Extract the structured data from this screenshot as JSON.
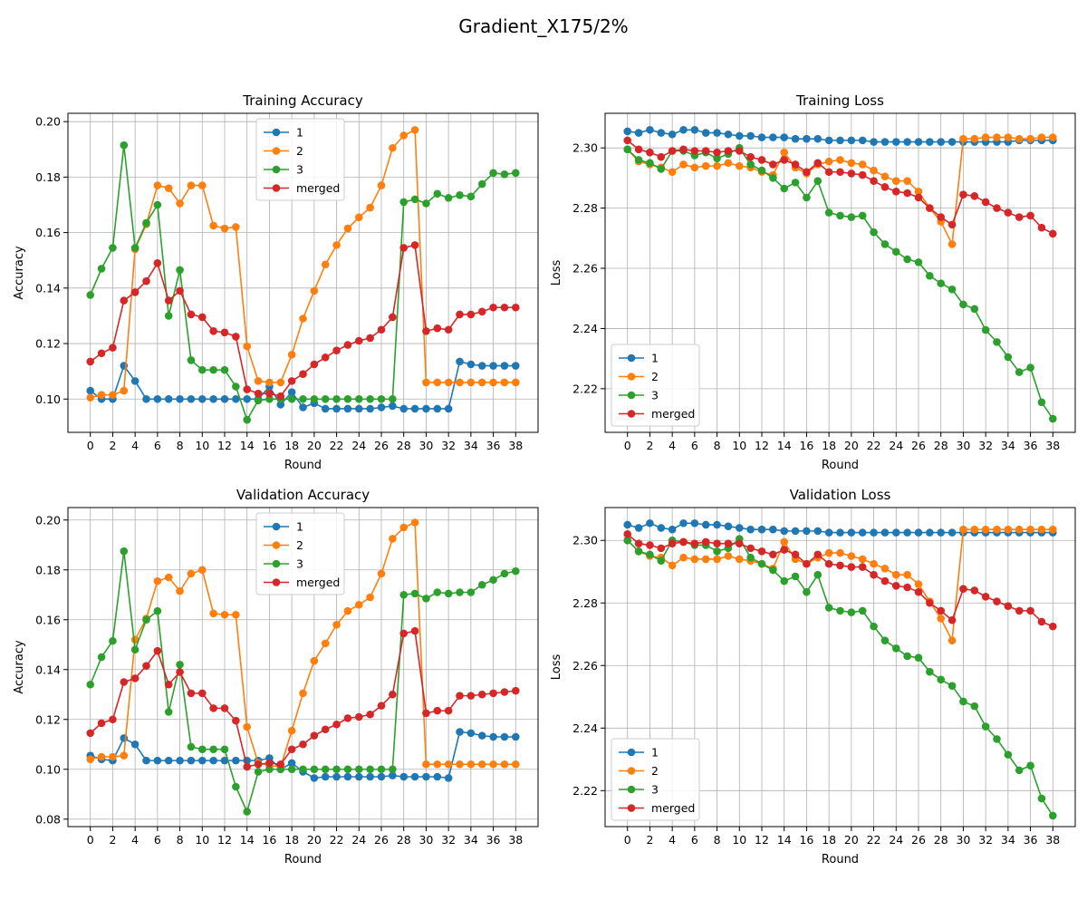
{
  "figure": {
    "title": "Gradient_X175/2%"
  },
  "colors": {
    "1": "#1f77b4",
    "2": "#ff7f0e",
    "3": "#2ca02c",
    "merged": "#d62728",
    "grid": "#b0b0b0",
    "axis": "#000000"
  },
  "chart_data": [
    {
      "type": "line",
      "title": "Training Accuracy",
      "xlabel": "Round",
      "ylabel": "Accuracy",
      "xlim": [
        -2,
        40
      ],
      "ylim": [
        0.088,
        0.203
      ],
      "x_ticks": [
        "0",
        "2",
        "4",
        "6",
        "8",
        "10",
        "12",
        "14",
        "16",
        "18",
        "20",
        "22",
        "24",
        "26",
        "28",
        "30",
        "32",
        "34",
        "36",
        "38"
      ],
      "y_ticks": [
        "0.10",
        "0.12",
        "0.14",
        "0.16",
        "0.18",
        "0.20"
      ],
      "grid": true,
      "legend_position": "top-center",
      "x": [
        0,
        1,
        2,
        3,
        4,
        5,
        6,
        7,
        8,
        9,
        10,
        11,
        12,
        13,
        14,
        15,
        16,
        17,
        18,
        19,
        20,
        21,
        22,
        23,
        24,
        25,
        26,
        27,
        28,
        29,
        30,
        31,
        32,
        33,
        34,
        35,
        36,
        37,
        38
      ],
      "series": [
        {
          "name": "1",
          "values": [
            0.103,
            0.1,
            0.1,
            0.112,
            0.1065,
            0.1,
            0.1,
            0.1,
            0.1,
            0.1,
            0.1,
            0.1,
            0.1,
            0.1,
            0.1,
            0.1,
            0.1045,
            0.098,
            0.1025,
            0.097,
            0.0985,
            0.0965,
            0.0965,
            0.0965,
            0.0965,
            0.0965,
            0.097,
            0.0975,
            0.0965,
            0.0965,
            0.0965,
            0.0965,
            0.0965,
            0.1135,
            0.1125,
            0.112,
            0.112,
            0.112,
            0.112
          ]
        },
        {
          "name": "2",
          "values": [
            0.1005,
            0.1015,
            0.1015,
            0.103,
            0.154,
            0.163,
            0.177,
            0.176,
            0.1705,
            0.177,
            0.177,
            0.1625,
            0.1615,
            0.162,
            0.119,
            0.1065,
            0.106,
            0.106,
            0.116,
            0.129,
            0.139,
            0.1485,
            0.1555,
            0.1615,
            0.1655,
            0.169,
            0.177,
            0.1905,
            0.195,
            0.197,
            0.106,
            0.106,
            0.106,
            0.106,
            0.106,
            0.106,
            0.106,
            0.106,
            0.106
          ]
        },
        {
          "name": "3",
          "values": [
            0.1375,
            0.147,
            0.1545,
            0.1915,
            0.1545,
            0.1635,
            0.17,
            0.13,
            0.1465,
            0.114,
            0.1105,
            0.1105,
            0.1105,
            0.1045,
            0.0925,
            0.0995,
            0.1,
            0.1,
            0.1,
            0.1,
            0.1,
            0.1,
            0.1,
            0.1,
            0.1,
            0.1,
            0.1,
            0.1,
            0.171,
            0.172,
            0.1705,
            0.174,
            0.1725,
            0.1735,
            0.173,
            0.1775,
            0.1815,
            0.181,
            0.1815
          ]
        },
        {
          "name": "merged",
          "values": [
            0.1135,
            0.1165,
            0.1185,
            0.1355,
            0.1385,
            0.1425,
            0.149,
            0.1355,
            0.139,
            0.1305,
            0.1295,
            0.1245,
            0.124,
            0.1225,
            0.1035,
            0.102,
            0.102,
            0.101,
            0.1065,
            0.109,
            0.1125,
            0.115,
            0.1175,
            0.1195,
            0.121,
            0.122,
            0.125,
            0.1295,
            0.1545,
            0.1555,
            0.1245,
            0.1255,
            0.125,
            0.1305,
            0.1305,
            0.1315,
            0.133,
            0.133,
            0.133
          ]
        }
      ]
    },
    {
      "type": "line",
      "title": "Training Loss",
      "xlabel": "Round",
      "ylabel": "Loss",
      "xlim": [
        -2,
        40
      ],
      "ylim": [
        2.2055,
        2.3115
      ],
      "x_ticks": [
        "0",
        "2",
        "4",
        "6",
        "8",
        "10",
        "12",
        "14",
        "16",
        "18",
        "20",
        "22",
        "24",
        "26",
        "28",
        "30",
        "32",
        "34",
        "36",
        "38"
      ],
      "y_ticks": [
        "2.22",
        "2.24",
        "2.26",
        "2.28",
        "2.30"
      ],
      "grid": true,
      "legend_position": "bottom-left",
      "x": [
        0,
        1,
        2,
        3,
        4,
        5,
        6,
        7,
        8,
        9,
        10,
        11,
        12,
        13,
        14,
        15,
        16,
        17,
        18,
        19,
        20,
        21,
        22,
        23,
        24,
        25,
        26,
        27,
        28,
        29,
        30,
        31,
        32,
        33,
        34,
        35,
        36,
        37,
        38
      ],
      "series": [
        {
          "name": "1",
          "values": [
            2.3055,
            2.305,
            2.306,
            2.305,
            2.3045,
            2.306,
            2.306,
            2.305,
            2.305,
            2.3045,
            2.304,
            2.304,
            2.3035,
            2.3035,
            2.3035,
            2.303,
            2.303,
            2.303,
            2.3025,
            2.3025,
            2.3025,
            2.3025,
            2.302,
            2.302,
            2.302,
            2.302,
            2.302,
            2.302,
            2.302,
            2.302,
            2.302,
            2.302,
            2.302,
            2.302,
            2.302,
            2.3025,
            2.3025,
            2.3025,
            2.3025
          ]
        },
        {
          "name": "2",
          "values": [
            2.2995,
            2.2955,
            2.2945,
            2.2935,
            2.292,
            2.2945,
            2.2935,
            2.294,
            2.294,
            2.295,
            2.294,
            2.2935,
            2.292,
            2.291,
            2.2985,
            2.2935,
            2.2915,
            2.2945,
            2.2955,
            2.296,
            2.295,
            2.2945,
            2.2925,
            2.2905,
            2.289,
            2.289,
            2.2855,
            2.28,
            2.2755,
            2.268,
            2.303,
            2.303,
            2.3035,
            2.3035,
            2.3035,
            2.303,
            2.303,
            2.3035,
            2.3035
          ]
        },
        {
          "name": "3",
          "values": [
            2.2995,
            2.296,
            2.295,
            2.293,
            2.299,
            2.299,
            2.2975,
            2.2985,
            2.2965,
            2.298,
            2.3,
            2.2945,
            2.2925,
            2.29,
            2.2865,
            2.2885,
            2.2835,
            2.289,
            2.2785,
            2.2775,
            2.277,
            2.2775,
            2.272,
            2.268,
            2.2655,
            2.263,
            2.262,
            2.2575,
            2.255,
            2.253,
            2.248,
            2.2465,
            2.2395,
            2.2355,
            2.2305,
            2.2255,
            2.227,
            2.2155,
            2.21
          ]
        },
        {
          "name": "merged",
          "values": [
            2.3025,
            2.2995,
            2.2985,
            2.297,
            2.299,
            2.2995,
            2.299,
            2.299,
            2.2985,
            2.299,
            2.299,
            2.297,
            2.296,
            2.2945,
            2.296,
            2.2945,
            2.292,
            2.295,
            2.292,
            2.292,
            2.2915,
            2.291,
            2.289,
            2.287,
            2.2855,
            2.285,
            2.2835,
            2.28,
            2.277,
            2.2745,
            2.2845,
            2.284,
            2.282,
            2.28,
            2.2785,
            2.277,
            2.2775,
            2.2735,
            2.2715
          ]
        }
      ]
    },
    {
      "type": "line",
      "title": "Validation Accuracy",
      "xlabel": "Round",
      "ylabel": "Accuracy",
      "xlim": [
        -2,
        40
      ],
      "ylim": [
        0.077,
        0.205
      ],
      "x_ticks": [
        "0",
        "2",
        "4",
        "6",
        "8",
        "10",
        "12",
        "14",
        "16",
        "18",
        "20",
        "22",
        "24",
        "26",
        "28",
        "30",
        "32",
        "34",
        "36",
        "38"
      ],
      "y_ticks": [
        "0.08",
        "0.10",
        "0.12",
        "0.14",
        "0.16",
        "0.18",
        "0.20"
      ],
      "grid": true,
      "legend_position": "top-center",
      "x": [
        0,
        1,
        2,
        3,
        4,
        5,
        6,
        7,
        8,
        9,
        10,
        11,
        12,
        13,
        14,
        15,
        16,
        17,
        18,
        19,
        20,
        21,
        22,
        23,
        24,
        25,
        26,
        27,
        28,
        29,
        30,
        31,
        32,
        33,
        34,
        35,
        36,
        37,
        38
      ],
      "series": [
        {
          "name": "1",
          "values": [
            0.1055,
            0.104,
            0.1035,
            0.1125,
            0.11,
            0.1035,
            0.1035,
            0.1035,
            0.1035,
            0.1035,
            0.1035,
            0.1035,
            0.1035,
            0.1035,
            0.1035,
            0.1035,
            0.1045,
            0.1,
            0.1025,
            0.099,
            0.0965,
            0.097,
            0.097,
            0.097,
            0.097,
            0.097,
            0.097,
            0.0975,
            0.097,
            0.097,
            0.097,
            0.097,
            0.0965,
            0.115,
            0.1145,
            0.1135,
            0.113,
            0.113,
            0.113
          ]
        },
        {
          "name": "2",
          "values": [
            0.104,
            0.105,
            0.105,
            0.1055,
            0.152,
            0.1605,
            0.1755,
            0.177,
            0.1715,
            0.1785,
            0.18,
            0.1625,
            0.162,
            0.162,
            0.117,
            0.1025,
            0.1015,
            0.101,
            0.1155,
            0.1305,
            0.1435,
            0.1505,
            0.158,
            0.1635,
            0.166,
            0.169,
            0.1785,
            0.1925,
            0.197,
            0.199,
            0.102,
            0.102,
            0.102,
            0.102,
            0.102,
            0.102,
            0.102,
            0.102,
            0.102
          ]
        },
        {
          "name": "3",
          "values": [
            0.134,
            0.145,
            0.1515,
            0.1875,
            0.148,
            0.16,
            0.1635,
            0.123,
            0.142,
            0.109,
            0.108,
            0.108,
            0.108,
            0.093,
            0.083,
            0.099,
            0.1,
            0.1,
            0.1,
            0.1,
            0.1,
            0.1,
            0.1,
            0.1,
            0.1,
            0.1,
            0.1,
            0.1,
            0.17,
            0.1705,
            0.1685,
            0.171,
            0.1705,
            0.171,
            0.171,
            0.174,
            0.176,
            0.1785,
            0.1795
          ]
        },
        {
          "name": "merged",
          "values": [
            0.1145,
            0.1185,
            0.12,
            0.135,
            0.1365,
            0.1415,
            0.1475,
            0.134,
            0.139,
            0.1305,
            0.1305,
            0.1245,
            0.1245,
            0.1195,
            0.101,
            0.102,
            0.1025,
            0.102,
            0.108,
            0.11,
            0.1135,
            0.116,
            0.118,
            0.1205,
            0.121,
            0.122,
            0.1255,
            0.13,
            0.1545,
            0.1555,
            0.1225,
            0.1235,
            0.1235,
            0.1295,
            0.1295,
            0.13,
            0.1305,
            0.131,
            0.1315
          ]
        }
      ]
    },
    {
      "type": "line",
      "title": "Validation Loss",
      "xlabel": "Round",
      "ylabel": "Loss",
      "xlim": [
        -2,
        40
      ],
      "ylim": [
        2.2085,
        2.3105
      ],
      "x_ticks": [
        "0",
        "2",
        "4",
        "6",
        "8",
        "10",
        "12",
        "14",
        "16",
        "18",
        "20",
        "22",
        "24",
        "26",
        "28",
        "30",
        "32",
        "34",
        "36",
        "38"
      ],
      "y_ticks": [
        "2.22",
        "2.24",
        "2.26",
        "2.28",
        "2.30"
      ],
      "grid": true,
      "legend_position": "bottom-left",
      "x": [
        0,
        1,
        2,
        3,
        4,
        5,
        6,
        7,
        8,
        9,
        10,
        11,
        12,
        13,
        14,
        15,
        16,
        17,
        18,
        19,
        20,
        21,
        22,
        23,
        24,
        25,
        26,
        27,
        28,
        29,
        30,
        31,
        32,
        33,
        34,
        35,
        36,
        37,
        38
      ],
      "series": [
        {
          "name": "1",
          "values": [
            2.305,
            2.304,
            2.3055,
            2.304,
            2.3035,
            2.3055,
            2.3055,
            2.305,
            2.305,
            2.3045,
            2.304,
            2.3035,
            2.3035,
            2.3035,
            2.303,
            2.303,
            2.303,
            2.303,
            2.3025,
            2.3025,
            2.3025,
            2.3025,
            2.3025,
            2.3025,
            2.3025,
            2.3025,
            2.3025,
            2.3025,
            2.3025,
            2.3025,
            2.3025,
            2.3025,
            2.3025,
            2.3025,
            2.3025,
            2.3025,
            2.3025,
            2.3025,
            2.3025
          ]
        },
        {
          "name": "2",
          "values": [
            2.3,
            2.2965,
            2.295,
            2.2945,
            2.292,
            2.2945,
            2.294,
            2.294,
            2.294,
            2.295,
            2.294,
            2.2935,
            2.2925,
            2.291,
            2.2995,
            2.294,
            2.2925,
            2.2945,
            2.296,
            2.296,
            2.295,
            2.294,
            2.2925,
            2.291,
            2.289,
            2.289,
            2.286,
            2.2805,
            2.275,
            2.268,
            2.3035,
            2.3035,
            2.3035,
            2.3035,
            2.3035,
            2.3035,
            2.3035,
            2.3035,
            2.3035
          ]
        },
        {
          "name": "3",
          "values": [
            2.3,
            2.2965,
            2.2955,
            2.2935,
            2.3,
            2.2995,
            2.2985,
            2.2985,
            2.2965,
            2.2975,
            2.3005,
            2.2945,
            2.2925,
            2.2905,
            2.287,
            2.2885,
            2.2835,
            2.289,
            2.2785,
            2.2775,
            2.277,
            2.2775,
            2.2725,
            2.268,
            2.2655,
            2.263,
            2.2625,
            2.258,
            2.2555,
            2.2535,
            2.2485,
            2.247,
            2.2405,
            2.2365,
            2.2315,
            2.2265,
            2.228,
            2.2175,
            2.212
          ]
        },
        {
          "name": "merged",
          "values": [
            2.302,
            2.299,
            2.2985,
            2.2975,
            2.299,
            2.2995,
            2.299,
            2.2995,
            2.299,
            2.299,
            2.299,
            2.2975,
            2.2965,
            2.2955,
            2.297,
            2.2955,
            2.2925,
            2.2955,
            2.2925,
            2.292,
            2.2915,
            2.2915,
            2.289,
            2.287,
            2.2855,
            2.285,
            2.2835,
            2.28,
            2.2775,
            2.2745,
            2.2845,
            2.284,
            2.282,
            2.2805,
            2.279,
            2.2775,
            2.2775,
            2.274,
            2.2725
          ]
        }
      ]
    }
  ]
}
